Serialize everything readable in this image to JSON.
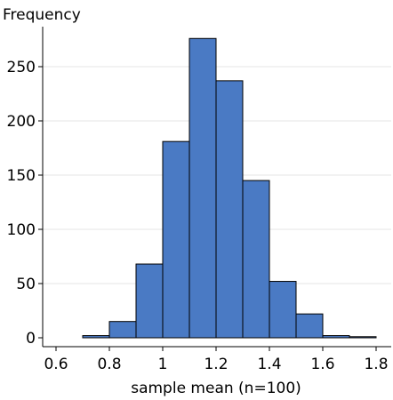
{
  "chart_data": {
    "type": "bar",
    "title": "",
    "xlabel": "sample mean (n=100)",
    "ylabel": "Frequency",
    "xlim": [
      0.6,
      1.8
    ],
    "ylim": [
      0,
      280
    ],
    "grid": "horizontal",
    "x_ticks": [
      "0.6",
      "0.8",
      "1",
      "1.2",
      "1.4",
      "1.6",
      "1.8"
    ],
    "x_tick_values": [
      0.6,
      0.8,
      1.0,
      1.2,
      1.4,
      1.6,
      1.8
    ],
    "y_ticks": [
      "0",
      "50",
      "100",
      "150",
      "200",
      "250"
    ],
    "y_tick_values": [
      0,
      50,
      100,
      150,
      200,
      250
    ],
    "bins": [
      {
        "x0": 0.7,
        "x1": 0.8,
        "value": 2
      },
      {
        "x0": 0.8,
        "x1": 0.9,
        "value": 15
      },
      {
        "x0": 0.9,
        "x1": 1.0,
        "value": 68
      },
      {
        "x0": 1.0,
        "x1": 1.1,
        "value": 181
      },
      {
        "x0": 1.1,
        "x1": 1.2,
        "value": 276
      },
      {
        "x0": 1.2,
        "x1": 1.3,
        "value": 237
      },
      {
        "x0": 1.3,
        "x1": 1.4,
        "value": 145
      },
      {
        "x0": 1.4,
        "x1": 1.5,
        "value": 52
      },
      {
        "x0": 1.5,
        "x1": 1.6,
        "value": 22
      },
      {
        "x0": 1.6,
        "x1": 1.7,
        "value": 2
      },
      {
        "x0": 1.7,
        "x1": 1.8,
        "value": 1
      }
    ],
    "colors": {
      "bar": "#4a7ac4"
    }
  }
}
